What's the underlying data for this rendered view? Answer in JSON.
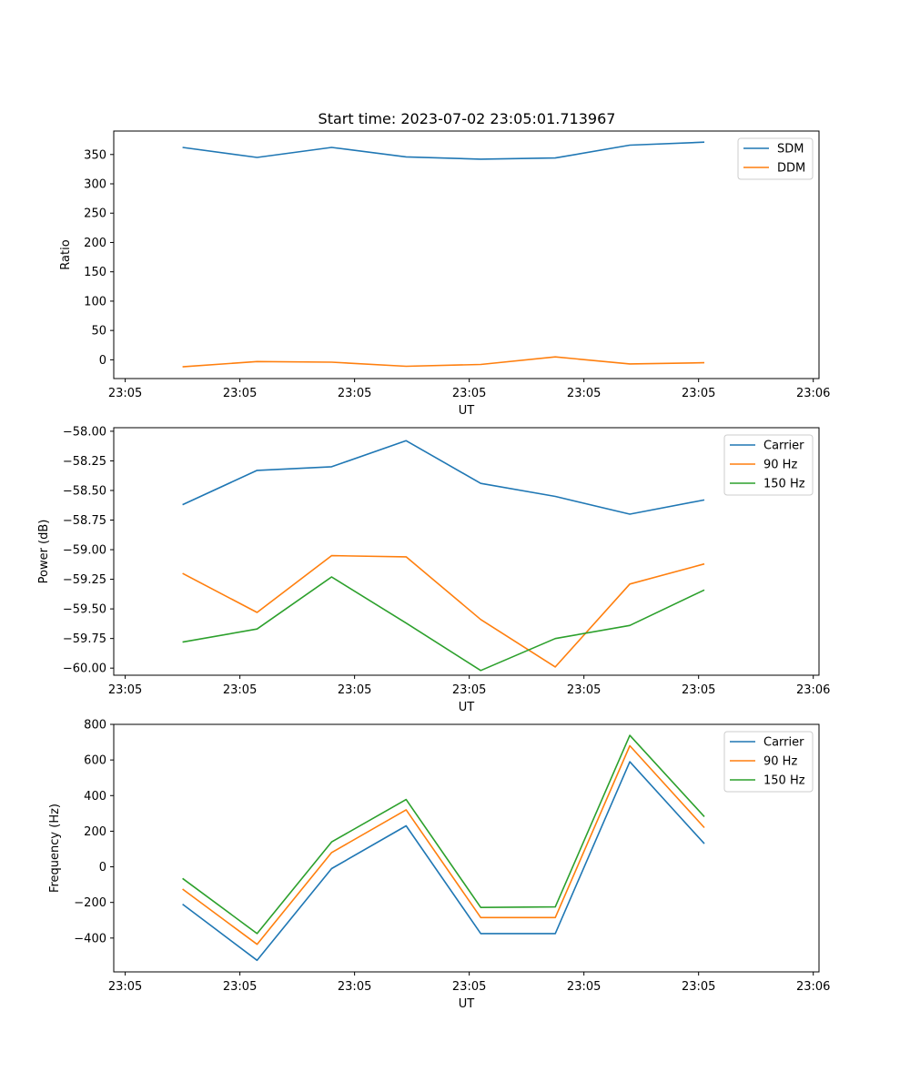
{
  "title": "Start time: 2023-07-02 23:05:01.713967",
  "colors": {
    "blue": "#1f77b4",
    "orange": "#ff7f0e",
    "green": "#2ca02c"
  },
  "chart_data": [
    {
      "type": "line",
      "title": "Start time: 2023-07-02 23:05:01.713967",
      "xlabel": "UT",
      "ylabel": "Ratio",
      "x": [
        0.5,
        1.15,
        1.8,
        2.45,
        3.1,
        3.75,
        4.4,
        5.05
      ],
      "xlim": [
        -0.1,
        6.05
      ],
      "xticks": [
        0,
        1,
        2,
        3,
        4,
        5,
        6
      ],
      "xtick_labels": [
        "23:05",
        "23:05",
        "23:05",
        "23:05",
        "23:05",
        "23:05",
        "23:06"
      ],
      "ylim": [
        -32,
        390
      ],
      "yticks": [
        0,
        50,
        100,
        150,
        200,
        250,
        300,
        350
      ],
      "ytick_labels": [
        "0",
        "50",
        "100",
        "150",
        "200",
        "250",
        "300",
        "350"
      ],
      "legend": "top-right",
      "series": [
        {
          "name": "SDM",
          "color": "#1f77b4",
          "values": [
            362,
            345,
            362,
            346,
            342,
            344,
            366,
            371
          ]
        },
        {
          "name": "DDM",
          "color": "#ff7f0e",
          "values": [
            -12,
            -3,
            -4,
            -11,
            -8,
            5,
            -7,
            -5
          ]
        }
      ]
    },
    {
      "type": "line",
      "xlabel": "UT",
      "ylabel": "Power (dB)",
      "x": [
        0.5,
        1.15,
        1.8,
        2.45,
        3.1,
        3.75,
        4.4,
        5.05
      ],
      "xlim": [
        -0.1,
        6.05
      ],
      "xticks": [
        0,
        1,
        2,
        3,
        4,
        5,
        6
      ],
      "xtick_labels": [
        "23:05",
        "23:05",
        "23:05",
        "23:05",
        "23:05",
        "23:05",
        "23:06"
      ],
      "ylim": [
        -60.06,
        -57.97
      ],
      "yticks": [
        -60.0,
        -59.75,
        -59.5,
        -59.25,
        -59.0,
        -58.75,
        -58.5,
        -58.25,
        -58.0
      ],
      "ytick_labels": [
        "−60.00",
        "−59.75",
        "−59.50",
        "−59.25",
        "−59.00",
        "−58.75",
        "−58.50",
        "−58.25",
        "−58.00"
      ],
      "legend": "top-right",
      "series": [
        {
          "name": "Carrier",
          "color": "#1f77b4",
          "values": [
            -58.62,
            -58.33,
            -58.3,
            -58.08,
            -58.44,
            -58.55,
            -58.7,
            -58.58
          ]
        },
        {
          "name": "90 Hz",
          "color": "#ff7f0e",
          "values": [
            -59.2,
            -59.53,
            -59.05,
            -59.06,
            -59.59,
            -59.99,
            -59.29,
            -59.12
          ]
        },
        {
          "name": "150 Hz",
          "color": "#2ca02c",
          "values": [
            -59.78,
            -59.67,
            -59.23,
            -59.62,
            -60.02,
            -59.75,
            -59.64,
            -59.34
          ]
        }
      ]
    },
    {
      "type": "line",
      "xlabel": "UT",
      "ylabel": "Frequency (Hz)",
      "x": [
        0.5,
        1.15,
        1.8,
        2.45,
        3.1,
        3.75,
        4.4,
        5.05
      ],
      "xlim": [
        -0.1,
        6.05
      ],
      "xticks": [
        0,
        1,
        2,
        3,
        4,
        5,
        6
      ],
      "xtick_labels": [
        "23:05",
        "23:05",
        "23:05",
        "23:05",
        "23:05",
        "23:05",
        "23:06"
      ],
      "ylim": [
        -590,
        800
      ],
      "yticks": [
        -400,
        -200,
        0,
        200,
        400,
        600,
        800
      ],
      "ytick_labels": [
        "−400",
        "−200",
        "0",
        "200",
        "400",
        "600",
        "800"
      ],
      "legend": "top-right",
      "series": [
        {
          "name": "Carrier",
          "color": "#1f77b4",
          "values": [
            -210,
            -525,
            -10,
            230,
            -375,
            -375,
            590,
            130
          ]
        },
        {
          "name": "90 Hz",
          "color": "#ff7f0e",
          "values": [
            -125,
            -435,
            80,
            320,
            -285,
            -285,
            680,
            220
          ]
        },
        {
          "name": "150 Hz",
          "color": "#2ca02c",
          "values": [
            -65,
            -375,
            140,
            378,
            -228,
            -225,
            738,
            282
          ]
        }
      ]
    }
  ]
}
